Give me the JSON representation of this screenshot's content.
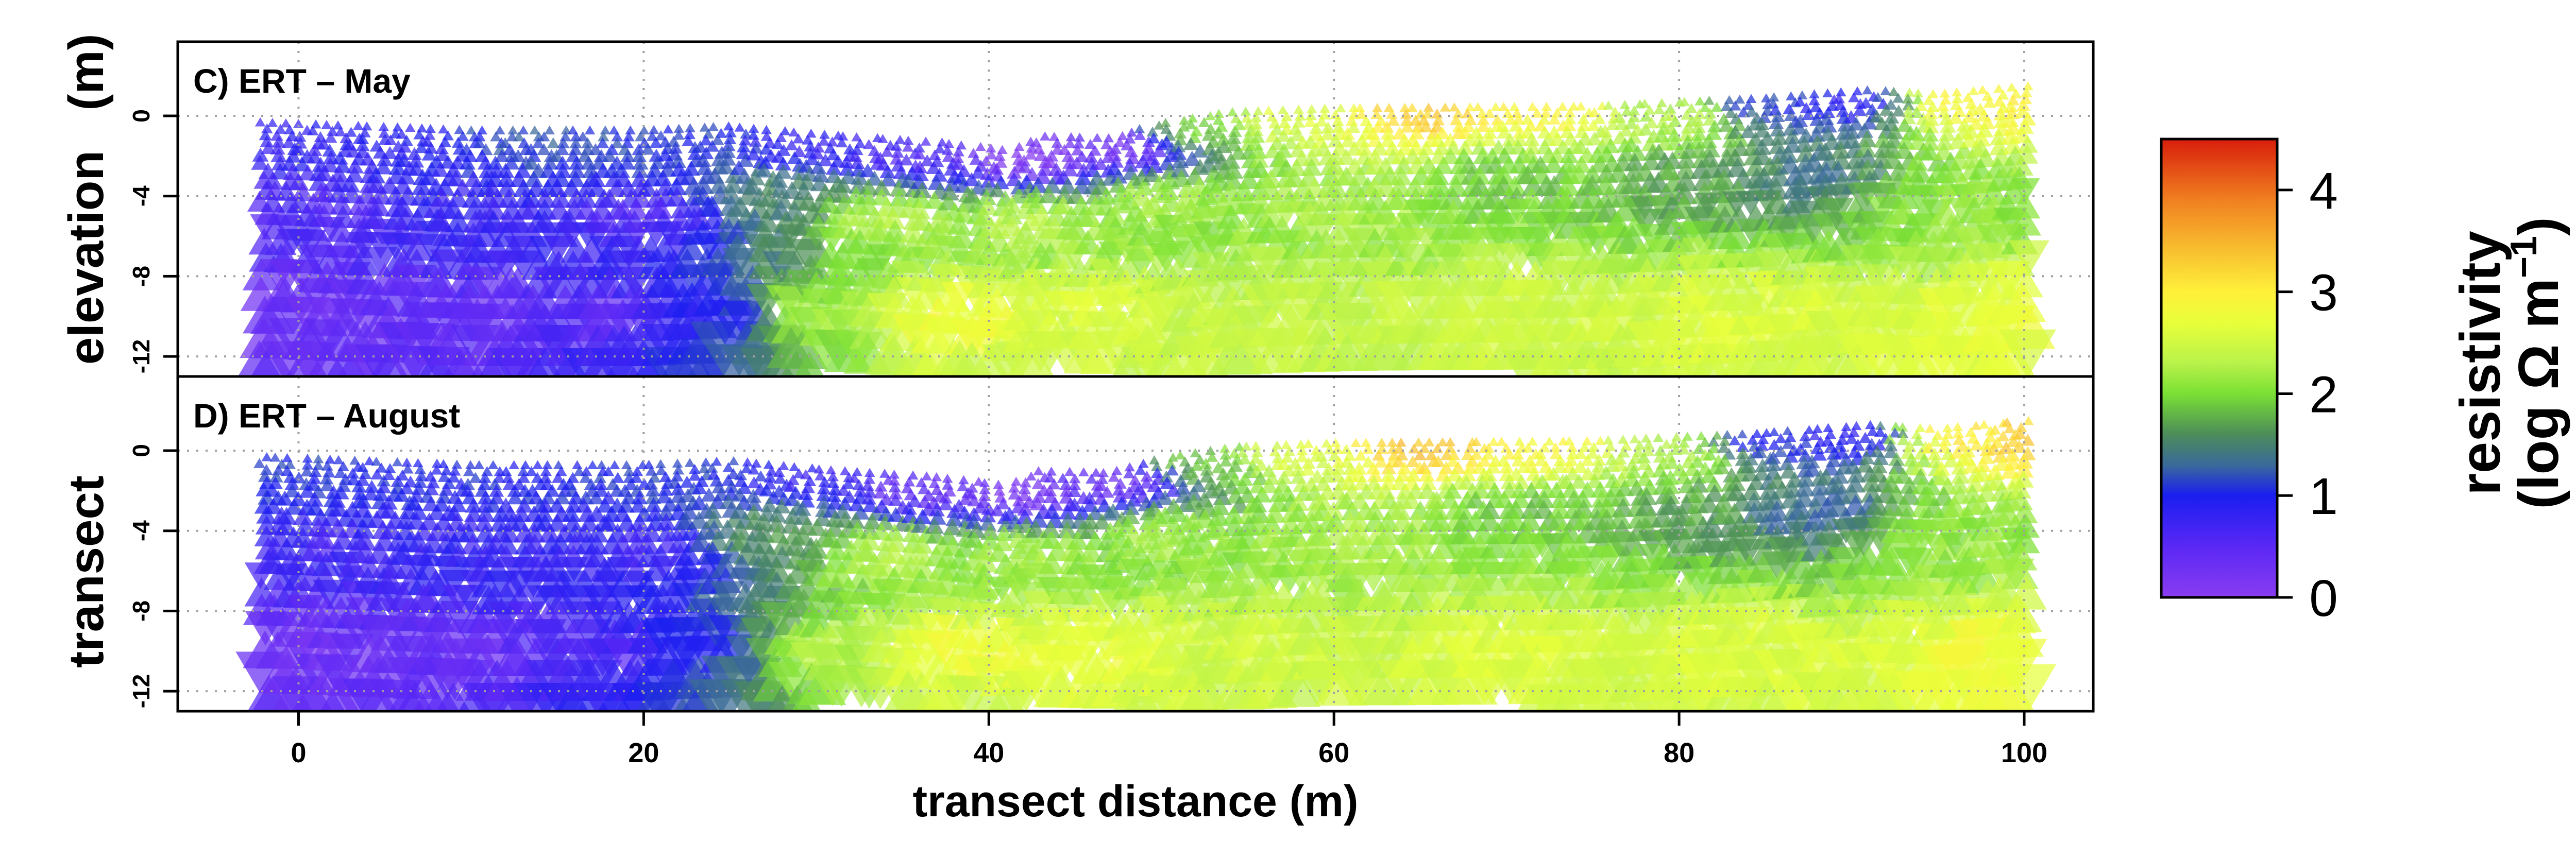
{
  "figure": {
    "ylabel_left": "elevation",
    "ylabel_left_unit": "(m)",
    "ylabel_left_lower": "transect",
    "xlabel": "transect distance (m)"
  },
  "colorbar": {
    "title_line1": "resistivity",
    "title_line2": "(log Ω m",
    "title_sup": "−1",
    "title_close": ")",
    "min": 0,
    "max": 4.5,
    "ticks": [
      0,
      1,
      2,
      3,
      4
    ],
    "stops": [
      {
        "v": 0.0,
        "color": "#8a3cf0"
      },
      {
        "v": 0.5,
        "color": "#5a28f5"
      },
      {
        "v": 1.0,
        "color": "#1a1ef0"
      },
      {
        "v": 1.3,
        "color": "#3a6a9a"
      },
      {
        "v": 1.6,
        "color": "#4c8c5a"
      },
      {
        "v": 2.0,
        "color": "#7ae034"
      },
      {
        "v": 2.3,
        "color": "#b9f24a"
      },
      {
        "v": 2.7,
        "color": "#e8ff3a"
      },
      {
        "v": 3.0,
        "color": "#fff03a"
      },
      {
        "v": 3.4,
        "color": "#f8c030"
      },
      {
        "v": 3.9,
        "color": "#f08020"
      },
      {
        "v": 4.5,
        "color": "#d81e0c"
      }
    ]
  },
  "chart_data": [
    {
      "type": "scatter",
      "title": "C) ERT – May",
      "xlabel": "transect distance (m)",
      "ylabel": "elevation (m)",
      "xlim": [
        -7,
        104
      ],
      "ylim": [
        -13,
        3.7
      ],
      "xticks": [
        0,
        20,
        40,
        60,
        80,
        100
      ],
      "yticks": [
        0,
        -4,
        -8,
        -12
      ],
      "grid": true,
      "surface": [
        [
          -2,
          -0.2
        ],
        [
          10,
          -0.6
        ],
        [
          20,
          -0.6
        ],
        [
          25,
          -0.4
        ],
        [
          30,
          -0.8
        ],
        [
          37,
          -1.2
        ],
        [
          41,
          -1.6
        ],
        [
          43,
          -0.9
        ],
        [
          47,
          -1.0
        ],
        [
          50,
          -0.3
        ],
        [
          54,
          0.3
        ],
        [
          60,
          0.5
        ],
        [
          75,
          0.6
        ],
        [
          85,
          1.0
        ],
        [
          91,
          1.4
        ],
        [
          95,
          1.2
        ],
        [
          100,
          1.6
        ]
      ],
      "resistivity_field": [
        {
          "x": -2,
          "y": -1,
          "v": 0.8
        },
        {
          "x": 5,
          "y": -1,
          "v": 0.9
        },
        {
          "x": 14,
          "y": -1,
          "v": 1.2
        },
        {
          "x": 22,
          "y": -1,
          "v": 1.1
        },
        {
          "x": 30,
          "y": -1.2,
          "v": 0.8
        },
        {
          "x": 36,
          "y": -1.8,
          "v": 0.6
        },
        {
          "x": 42,
          "y": -2,
          "v": 0.1
        },
        {
          "x": 48,
          "y": -1.5,
          "v": 0.2
        },
        {
          "x": 52,
          "y": -0.5,
          "v": 2.0
        },
        {
          "x": 58,
          "y": 0,
          "v": 2.6
        },
        {
          "x": 65,
          "y": 0.3,
          "v": 3.3
        },
        {
          "x": 72,
          "y": 0.3,
          "v": 2.9
        },
        {
          "x": 80,
          "y": 0,
          "v": 2.3
        },
        {
          "x": 85,
          "y": 0.6,
          "v": 1.1
        },
        {
          "x": 90,
          "y": 0.8,
          "v": 0.8
        },
        {
          "x": 96,
          "y": 0.8,
          "v": 2.9
        },
        {
          "x": 100,
          "y": 0.8,
          "v": 3.0
        },
        {
          "x": 0,
          "y": -5,
          "v": 0.6
        },
        {
          "x": 10,
          "y": -5,
          "v": 0.8
        },
        {
          "x": 20,
          "y": -5,
          "v": 0.6
        },
        {
          "x": 28,
          "y": -4,
          "v": 1.5
        },
        {
          "x": 34,
          "y": -5,
          "v": 2.3
        },
        {
          "x": 42,
          "y": -5,
          "v": 2.3
        },
        {
          "x": 50,
          "y": -4,
          "v": 2.2
        },
        {
          "x": 60,
          "y": -4,
          "v": 2.2
        },
        {
          "x": 70,
          "y": -3,
          "v": 1.9
        },
        {
          "x": 80,
          "y": -3,
          "v": 1.7
        },
        {
          "x": 88,
          "y": -3,
          "v": 1.4
        },
        {
          "x": 96,
          "y": -4,
          "v": 2.1
        },
        {
          "x": 0,
          "y": -10,
          "v": 0.3
        },
        {
          "x": 10,
          "y": -10,
          "v": 0.4
        },
        {
          "x": 18,
          "y": -10,
          "v": 0.5
        },
        {
          "x": 24,
          "y": -10,
          "v": 0.9
        },
        {
          "x": 30,
          "y": -10,
          "v": 2.2
        },
        {
          "x": 38,
          "y": -10,
          "v": 2.8
        },
        {
          "x": 46,
          "y": -10,
          "v": 2.6
        },
        {
          "x": 56,
          "y": -10,
          "v": 2.4
        },
        {
          "x": 70,
          "y": -10,
          "v": 2.5
        },
        {
          "x": 84,
          "y": -10,
          "v": 2.6
        },
        {
          "x": 100,
          "y": -10,
          "v": 2.7
        }
      ]
    },
    {
      "type": "scatter",
      "title": "D) ERT – August",
      "xlabel": "transect distance (m)",
      "ylabel": "elevation (m)",
      "xlim": [
        -7,
        104
      ],
      "ylim": [
        -13,
        3.7
      ],
      "xticks": [
        0,
        20,
        40,
        60,
        80,
        100
      ],
      "yticks": [
        0,
        -4,
        -8,
        -12
      ],
      "grid": true,
      "surface": [
        [
          -2,
          -0.2
        ],
        [
          10,
          -0.6
        ],
        [
          20,
          -0.6
        ],
        [
          25,
          -0.4
        ],
        [
          30,
          -0.8
        ],
        [
          37,
          -1.2
        ],
        [
          41,
          -1.6
        ],
        [
          43,
          -0.9
        ],
        [
          47,
          -1.0
        ],
        [
          50,
          -0.3
        ],
        [
          54,
          0.3
        ],
        [
          60,
          0.5
        ],
        [
          75,
          0.6
        ],
        [
          85,
          1.0
        ],
        [
          91,
          1.4
        ],
        [
          95,
          1.2
        ],
        [
          100,
          1.6
        ]
      ],
      "resistivity_field": [
        {
          "x": -2,
          "y": -1,
          "v": 1.1
        },
        {
          "x": 5,
          "y": -1,
          "v": 1.0
        },
        {
          "x": 14,
          "y": -1,
          "v": 1.0
        },
        {
          "x": 22,
          "y": -1,
          "v": 1.1
        },
        {
          "x": 30,
          "y": -1.2,
          "v": 0.8
        },
        {
          "x": 36,
          "y": -1.8,
          "v": 0.4
        },
        {
          "x": 42,
          "y": -2,
          "v": 0.2
        },
        {
          "x": 48,
          "y": -1.5,
          "v": 0.3
        },
        {
          "x": 52,
          "y": -0.5,
          "v": 1.9
        },
        {
          "x": 58,
          "y": 0,
          "v": 2.6
        },
        {
          "x": 65,
          "y": 0.3,
          "v": 3.4
        },
        {
          "x": 72,
          "y": 0.3,
          "v": 2.9
        },
        {
          "x": 80,
          "y": 0,
          "v": 2.3
        },
        {
          "x": 85,
          "y": 0.6,
          "v": 1.0
        },
        {
          "x": 90,
          "y": 0.8,
          "v": 0.8
        },
        {
          "x": 96,
          "y": 0.8,
          "v": 3.0
        },
        {
          "x": 100,
          "y": 0.8,
          "v": 3.3
        },
        {
          "x": 0,
          "y": -5,
          "v": 0.7
        },
        {
          "x": 10,
          "y": -5,
          "v": 0.8
        },
        {
          "x": 20,
          "y": -5,
          "v": 0.7
        },
        {
          "x": 28,
          "y": -4,
          "v": 1.6
        },
        {
          "x": 34,
          "y": -5,
          "v": 2.3
        },
        {
          "x": 42,
          "y": -5,
          "v": 2.2
        },
        {
          "x": 50,
          "y": -4,
          "v": 2.2
        },
        {
          "x": 60,
          "y": -4,
          "v": 2.2
        },
        {
          "x": 70,
          "y": -3,
          "v": 1.9
        },
        {
          "x": 80,
          "y": -3,
          "v": 1.7
        },
        {
          "x": 88,
          "y": -3,
          "v": 1.3
        },
        {
          "x": 96,
          "y": -4,
          "v": 2.1
        },
        {
          "x": 0,
          "y": -10,
          "v": 0.3
        },
        {
          "x": 10,
          "y": -10,
          "v": 0.4
        },
        {
          "x": 18,
          "y": -10,
          "v": 0.6
        },
        {
          "x": 24,
          "y": -10,
          "v": 1.0
        },
        {
          "x": 30,
          "y": -10,
          "v": 2.3
        },
        {
          "x": 38,
          "y": -10,
          "v": 2.8
        },
        {
          "x": 46,
          "y": -10,
          "v": 2.7
        },
        {
          "x": 56,
          "y": -10,
          "v": 2.5
        },
        {
          "x": 70,
          "y": -10,
          "v": 2.6
        },
        {
          "x": 84,
          "y": -10,
          "v": 2.6
        },
        {
          "x": 100,
          "y": -10,
          "v": 2.8
        }
      ]
    }
  ]
}
